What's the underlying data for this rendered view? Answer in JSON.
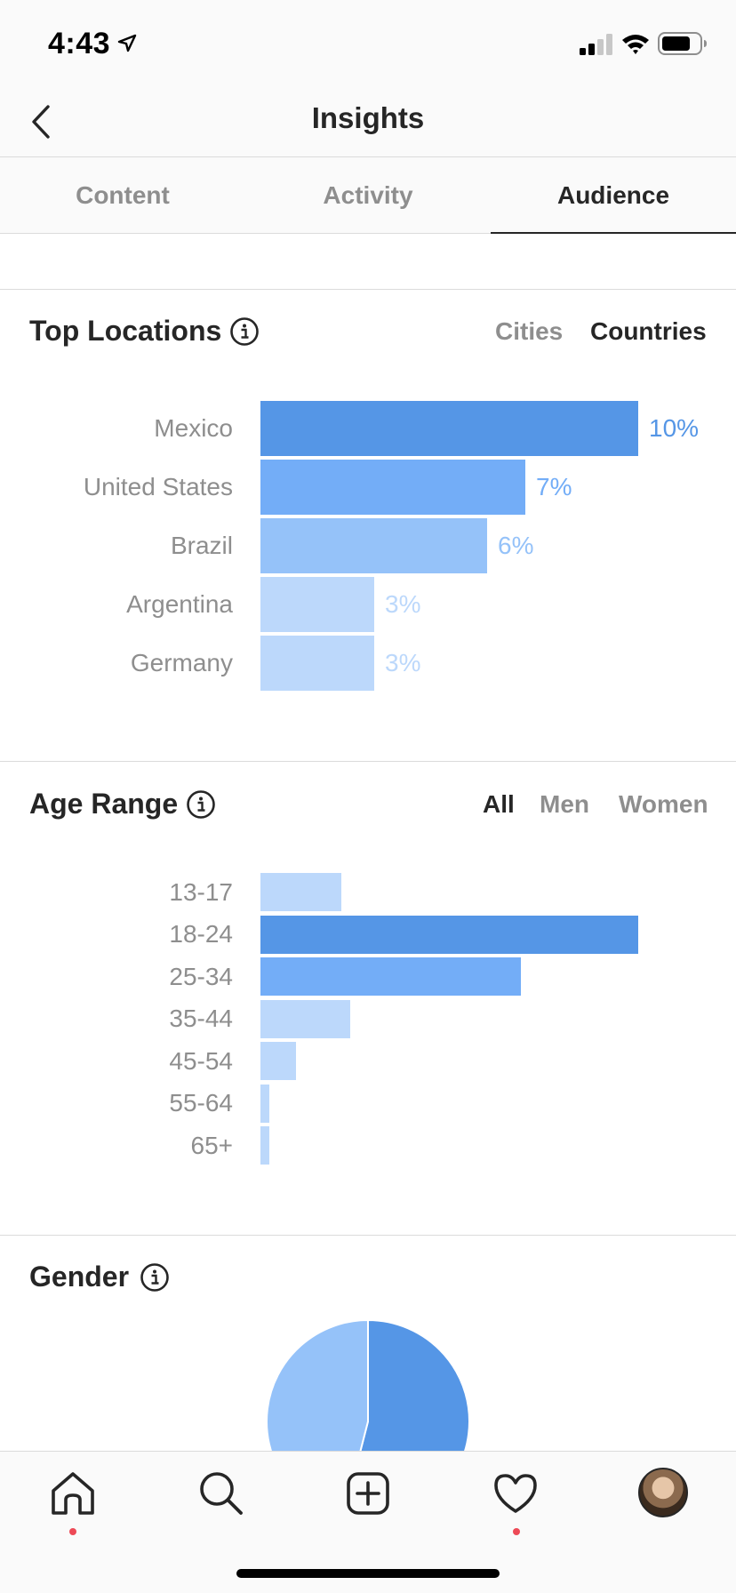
{
  "status_bar": {
    "time": "4:43"
  },
  "nav": {
    "title": "Insights"
  },
  "tabs": [
    {
      "label": "Content",
      "active": false
    },
    {
      "label": "Activity",
      "active": false
    },
    {
      "label": "Audience",
      "active": true
    }
  ],
  "top_locations": {
    "title": "Top Locations",
    "filters": [
      {
        "label": "Cities",
        "active": false
      },
      {
        "label": "Countries",
        "active": true
      }
    ],
    "rows": [
      {
        "label": "Mexico",
        "pct_label": "10%",
        "value": 10,
        "color": "#5596e6",
        "text_color": "#5596e6"
      },
      {
        "label": "United States",
        "pct_label": "7%",
        "value": 7,
        "color": "#73adf7",
        "text_color": "#73adf7"
      },
      {
        "label": "Brazil",
        "pct_label": "6%",
        "value": 6,
        "color": "#95c2f9",
        "text_color": "#95c2f9"
      },
      {
        "label": "Argentina",
        "pct_label": "3%",
        "value": 3,
        "color": "#bcd8fb",
        "text_color": "#bcd8fb"
      },
      {
        "label": "Germany",
        "pct_label": "3%",
        "value": 3,
        "color": "#bcd8fb",
        "text_color": "#bcd8fb"
      }
    ]
  },
  "age_range": {
    "title": "Age Range",
    "filters": [
      {
        "label": "All",
        "active": true
      },
      {
        "label": "Men",
        "active": false
      },
      {
        "label": "Women",
        "active": false
      }
    ],
    "rows": [
      {
        "label": "13-17",
        "value": 9.0,
        "color": "#bcd8fb"
      },
      {
        "label": "18-24",
        "value": 42.0,
        "color": "#5596e6"
      },
      {
        "label": "25-34",
        "value": 29.0,
        "color": "#73adf7"
      },
      {
        "label": "35-44",
        "value": 10.0,
        "color": "#bcd8fb"
      },
      {
        "label": "45-54",
        "value": 4.0,
        "color": "#bcd8fb"
      },
      {
        "label": "55-64",
        "value": 1.0,
        "color": "#bcd8fb"
      },
      {
        "label": "65+",
        "value": 1.0,
        "color": "#bcd8fb"
      }
    ]
  },
  "gender": {
    "title": "Gender",
    "slices": [
      {
        "value": 54,
        "color": "#5596e6"
      },
      {
        "value": 46,
        "color": "#95c2f9"
      }
    ]
  },
  "bottom_nav": {
    "items": [
      {
        "icon": "home-icon",
        "notification": true
      },
      {
        "icon": "search-icon",
        "notification": false
      },
      {
        "icon": "add-post-icon",
        "notification": false
      },
      {
        "icon": "heart-icon",
        "notification": true
      },
      {
        "icon": "profile-avatar",
        "notification": false
      }
    ]
  },
  "colors": {
    "accent_blue": "#5596e6",
    "text_primary": "#262626",
    "text_secondary": "#8e8e8e",
    "notification_red": "#ed4956"
  }
}
